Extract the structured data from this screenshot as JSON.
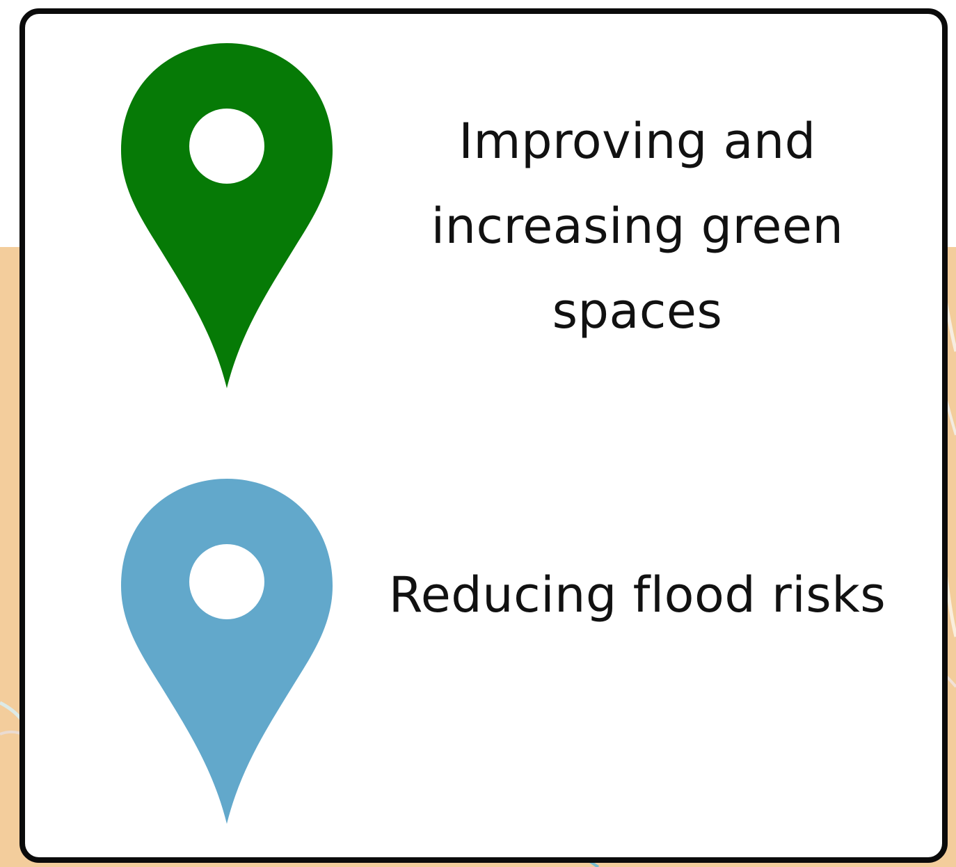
{
  "legend": {
    "items": [
      {
        "icon": "map-pin-icon",
        "color": "#067a06",
        "label": "Improving and increasing green spaces"
      },
      {
        "icon": "map-pin-icon",
        "color": "#62a8cb",
        "label": "Reducing flood risks"
      }
    ]
  },
  "colors": {
    "map_background": "#f3cd9c",
    "card_border": "#0b0b0b",
    "card_background": "#ffffff"
  }
}
